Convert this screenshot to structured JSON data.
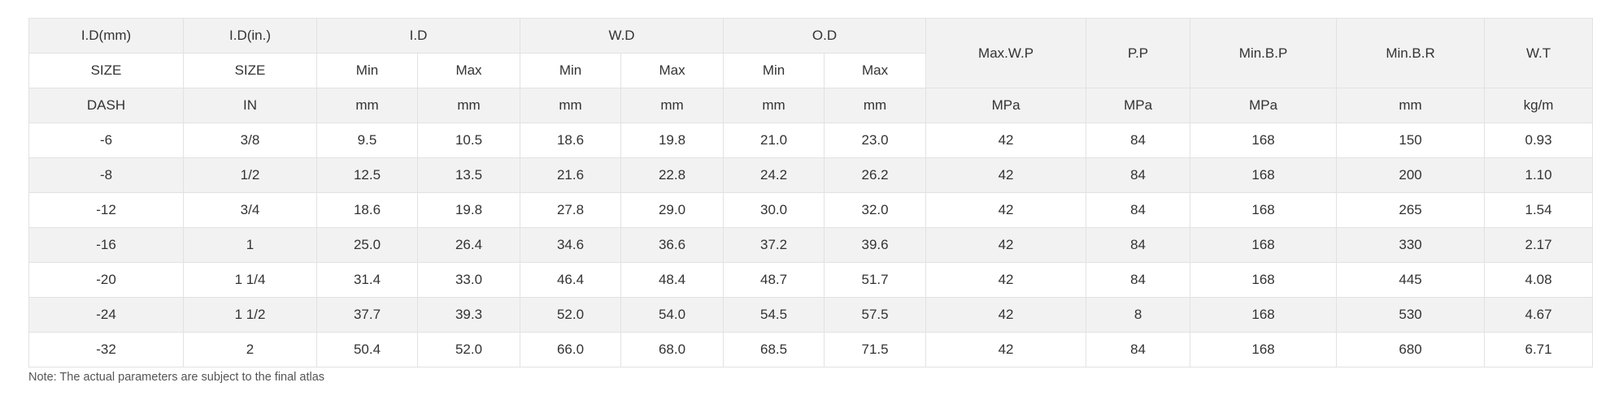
{
  "header": {
    "row1": {
      "id_mm": "I.D(mm)",
      "id_in": "I.D(in.)",
      "id": "I.D",
      "wd": "W.D",
      "od": "O.D",
      "max_wp": "Max.W.P",
      "pp": "P.P",
      "min_bp": "Min.B.P",
      "min_br": "Min.B.R",
      "wt": "W.T"
    },
    "row2": {
      "id_mm": "SIZE",
      "id_in": "SIZE",
      "id_min": "Min",
      "id_max": "Max",
      "wd_min": "Min",
      "wd_max": "Max",
      "od_min": "Min",
      "od_max": "Max"
    },
    "row3": [
      "DASH",
      "IN",
      "mm",
      "mm",
      "mm",
      "mm",
      "mm",
      "mm",
      "MPa",
      "MPa",
      "MPa",
      "mm",
      "kg/m"
    ]
  },
  "rows": [
    [
      "-6",
      "3/8",
      "9.5",
      "10.5",
      "18.6",
      "19.8",
      "21.0",
      "23.0",
      "42",
      "84",
      "168",
      "150",
      "0.93"
    ],
    [
      "-8",
      "1/2",
      "12.5",
      "13.5",
      "21.6",
      "22.8",
      "24.2",
      "26.2",
      "42",
      "84",
      "168",
      "200",
      "1.10"
    ],
    [
      "-12",
      "3/4",
      "18.6",
      "19.8",
      "27.8",
      "29.0",
      "30.0",
      "32.0",
      "42",
      "84",
      "168",
      "265",
      "1.54"
    ],
    [
      "-16",
      "1",
      "25.0",
      "26.4",
      "34.6",
      "36.6",
      "37.2",
      "39.6",
      "42",
      "84",
      "168",
      "330",
      "2.17"
    ],
    [
      "-20",
      "1 1/4",
      "31.4",
      "33.0",
      "46.4",
      "48.4",
      "48.7",
      "51.7",
      "42",
      "84",
      "168",
      "445",
      "4.08"
    ],
    [
      "-24",
      "1 1/2",
      "37.7",
      "39.3",
      "52.0",
      "54.0",
      "54.5",
      "57.5",
      "42",
      "8",
      "168",
      "530",
      "4.67"
    ],
    [
      "-32",
      "2",
      "50.4",
      "52.0",
      "66.0",
      "68.0",
      "68.5",
      "71.5",
      "42",
      "84",
      "168",
      "680",
      "6.71"
    ]
  ],
  "note": "Note: The actual parameters are subject to the final atlas"
}
